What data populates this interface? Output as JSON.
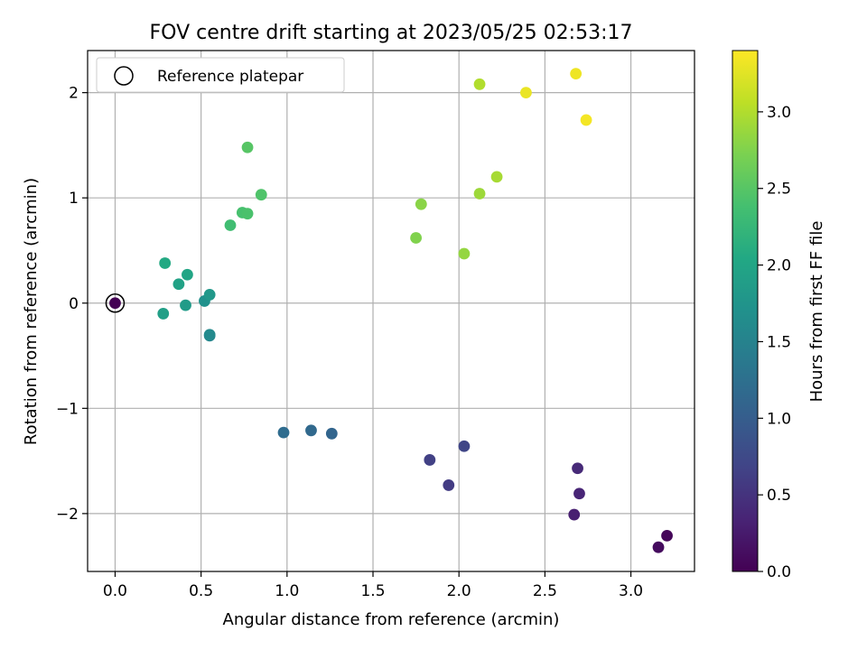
{
  "chart_data": {
    "type": "scatter",
    "title": "FOV centre drift starting at 2023/05/25 02:53:17",
    "xlabel": "Angular distance from reference (arcmin)",
    "ylabel": "Rotation from reference (arcmin)",
    "xlim": [
      -0.16,
      3.37
    ],
    "ylim": [
      -2.55,
      2.4
    ],
    "xticks": [
      0.0,
      0.5,
      1.0,
      1.5,
      2.0,
      2.5,
      3.0
    ],
    "xtick_labels": [
      "0.0",
      "0.5",
      "1.0",
      "1.5",
      "2.0",
      "2.5",
      "3.0"
    ],
    "yticks": [
      -2,
      -1,
      0,
      1,
      2
    ],
    "ytick_labels": [
      "−2",
      "−1",
      "0",
      "1",
      "2"
    ],
    "grid": true,
    "legend": {
      "position": "top-left",
      "entries": [
        "Reference platepar"
      ]
    },
    "reference_point": {
      "x": 0.0,
      "y": 0.0
    },
    "colorbar": {
      "label": "Hours from first FF file",
      "colormap": "viridis",
      "range": [
        0.0,
        3.4
      ],
      "ticks": [
        0.0,
        0.5,
        1.0,
        1.5,
        2.0,
        2.5,
        3.0
      ],
      "tick_labels": [
        "0.0",
        "0.5",
        "1.0",
        "1.5",
        "2.0",
        "2.5",
        "3.0"
      ]
    },
    "points": [
      {
        "x": 0.0,
        "y": 0.0,
        "c": 0.0
      },
      {
        "x": 3.21,
        "y": -2.21,
        "c": 0.05
      },
      {
        "x": 3.16,
        "y": -2.32,
        "c": 0.1
      },
      {
        "x": 2.67,
        "y": -2.01,
        "c": 0.3
      },
      {
        "x": 2.7,
        "y": -1.81,
        "c": 0.35
      },
      {
        "x": 2.69,
        "y": -1.57,
        "c": 0.4
      },
      {
        "x": 1.94,
        "y": -1.73,
        "c": 0.6
      },
      {
        "x": 1.83,
        "y": -1.49,
        "c": 0.65
      },
      {
        "x": 2.03,
        "y": -1.36,
        "c": 0.7
      },
      {
        "x": 1.26,
        "y": -1.24,
        "c": 1.1
      },
      {
        "x": 1.14,
        "y": -1.21,
        "c": 1.15
      },
      {
        "x": 0.98,
        "y": -1.23,
        "c": 1.2
      },
      {
        "x": 0.55,
        "y": -0.31,
        "c": 1.55
      },
      {
        "x": 0.55,
        "y": -0.3,
        "c": 1.6
      },
      {
        "x": 0.52,
        "y": 0.02,
        "c": 1.7
      },
      {
        "x": 0.55,
        "y": 0.08,
        "c": 1.8
      },
      {
        "x": 0.41,
        "y": -0.02,
        "c": 1.85
      },
      {
        "x": 0.28,
        "y": -0.1,
        "c": 1.9
      },
      {
        "x": 0.37,
        "y": 0.18,
        "c": 1.95
      },
      {
        "x": 0.42,
        "y": 0.27,
        "c": 2.0
      },
      {
        "x": 0.29,
        "y": 0.38,
        "c": 2.05
      },
      {
        "x": 0.67,
        "y": 0.74,
        "c": 2.35
      },
      {
        "x": 0.74,
        "y": 0.86,
        "c": 2.4
      },
      {
        "x": 0.77,
        "y": 0.85,
        "c": 2.42
      },
      {
        "x": 0.85,
        "y": 1.03,
        "c": 2.45
      },
      {
        "x": 0.77,
        "y": 1.48,
        "c": 2.5
      },
      {
        "x": 1.75,
        "y": 0.62,
        "c": 2.75
      },
      {
        "x": 1.78,
        "y": 0.94,
        "c": 2.8
      },
      {
        "x": 2.03,
        "y": 0.47,
        "c": 2.85
      },
      {
        "x": 2.12,
        "y": 1.04,
        "c": 2.9
      },
      {
        "x": 2.22,
        "y": 1.2,
        "c": 2.95
      },
      {
        "x": 2.12,
        "y": 2.08,
        "c": 3.0
      },
      {
        "x": 2.39,
        "y": 2.0,
        "c": 3.3
      },
      {
        "x": 2.68,
        "y": 2.18,
        "c": 3.32
      },
      {
        "x": 2.74,
        "y": 1.74,
        "c": 3.35
      }
    ]
  }
}
